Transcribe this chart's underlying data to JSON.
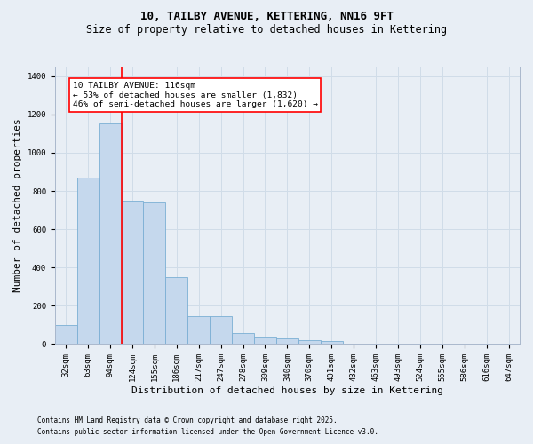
{
  "title_line1": "10, TAILBY AVENUE, KETTERING, NN16 9FT",
  "title_line2": "Size of property relative to detached houses in Kettering",
  "xlabel": "Distribution of detached houses by size in Kettering",
  "ylabel": "Number of detached properties",
  "categories": [
    "32sqm",
    "63sqm",
    "94sqm",
    "124sqm",
    "155sqm",
    "186sqm",
    "217sqm",
    "247sqm",
    "278sqm",
    "309sqm",
    "340sqm",
    "370sqm",
    "401sqm",
    "432sqm",
    "463sqm",
    "493sqm",
    "524sqm",
    "555sqm",
    "586sqm",
    "616sqm",
    "647sqm"
  ],
  "values": [
    100,
    870,
    1155,
    750,
    740,
    350,
    145,
    145,
    60,
    35,
    28,
    20,
    15,
    0,
    0,
    0,
    0,
    0,
    0,
    0,
    0
  ],
  "bar_color": "#c5d8ed",
  "bar_edge_color": "#7bafd4",
  "grid_color": "#d0dce8",
  "background_color": "#e8eef5",
  "vline_color": "red",
  "vline_position": 2.5,
  "annotation_text": "10 TAILBY AVENUE: 116sqm\n← 53% of detached houses are smaller (1,832)\n46% of semi-detached houses are larger (1,620) →",
  "annotation_box_color": "white",
  "annotation_box_edge": "red",
  "ylim": [
    0,
    1450
  ],
  "yticks": [
    0,
    200,
    400,
    600,
    800,
    1000,
    1200,
    1400
  ],
  "footnote1": "Contains HM Land Registry data © Crown copyright and database right 2025.",
  "footnote2": "Contains public sector information licensed under the Open Government Licence v3.0.",
  "title_fontsize": 9,
  "subtitle_fontsize": 8.5,
  "tick_fontsize": 6.5,
  "ylabel_fontsize": 8,
  "xlabel_fontsize": 8,
  "annotation_fontsize": 6.8,
  "footnote_fontsize": 5.5
}
